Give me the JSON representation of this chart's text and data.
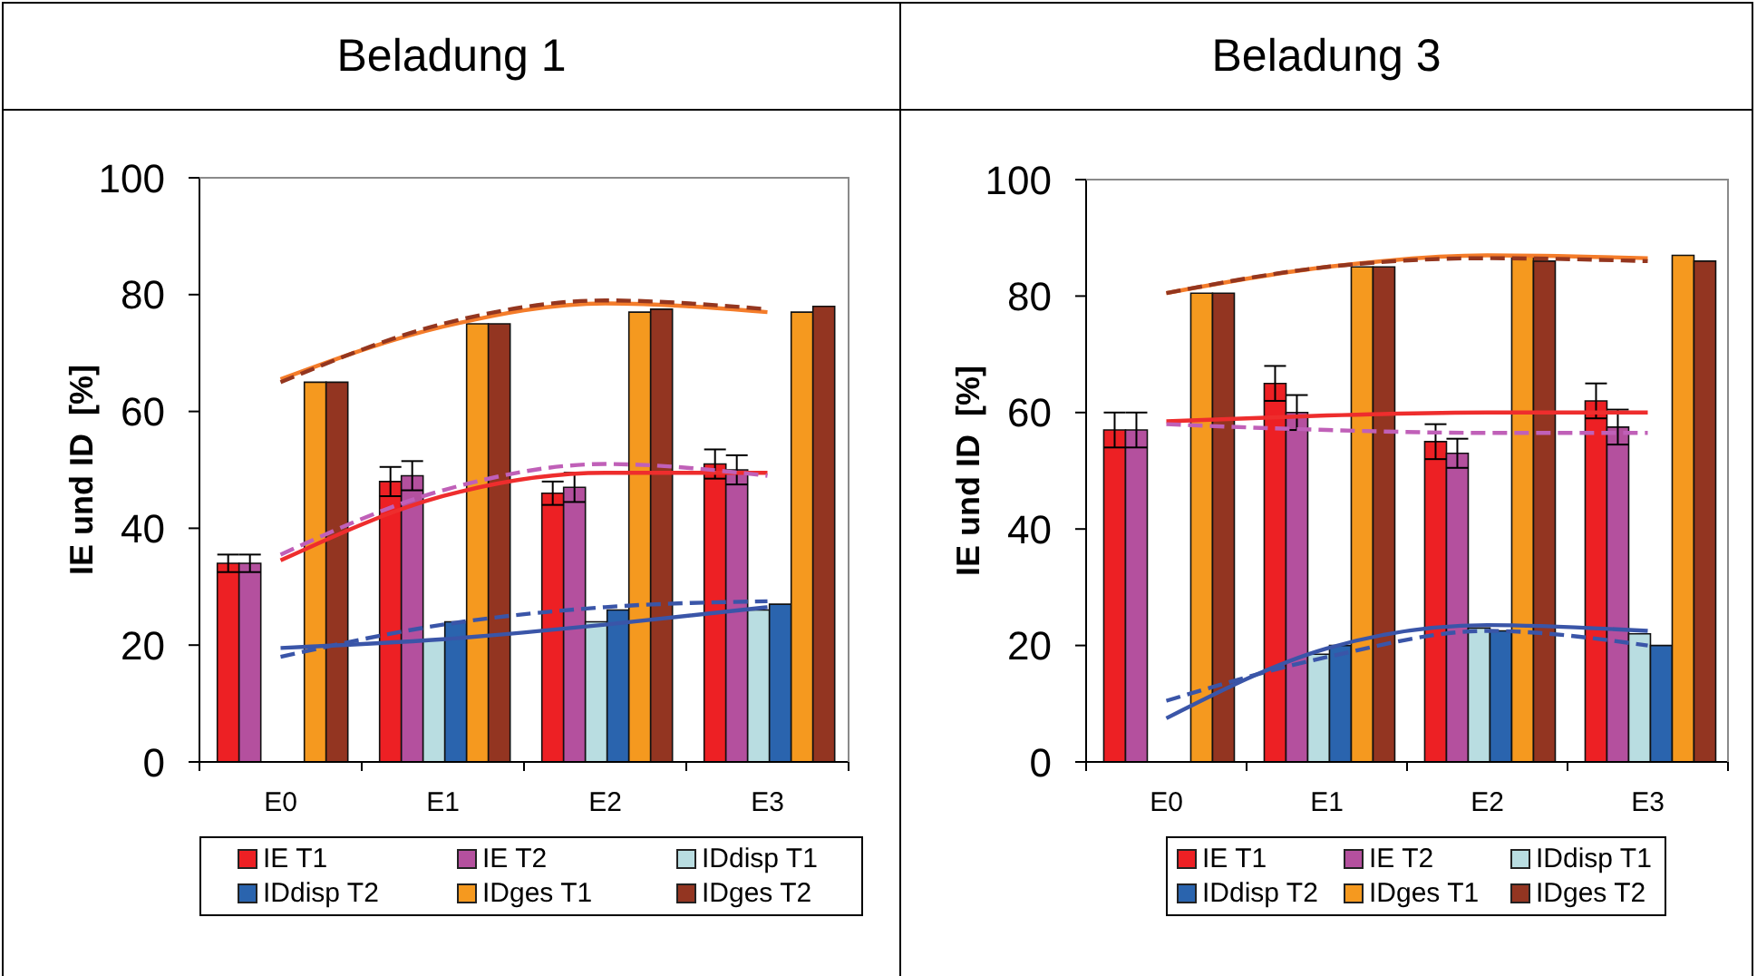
{
  "chart_data": [
    {
      "type": "bar",
      "title": "Beladung 1",
      "ylabel": "IE und ID  [%]",
      "categories": [
        "E0",
        "E1",
        "E2",
        "E3"
      ],
      "ylim": [
        0,
        100
      ],
      "yticks": [
        0,
        20,
        40,
        60,
        80,
        100
      ],
      "legend": "bottom",
      "series": [
        {
          "name": "IE T1",
          "color": "#ed2024",
          "values": [
            34,
            48,
            46,
            51
          ],
          "errors": [
            1.5,
            2.5,
            2,
            2.5
          ]
        },
        {
          "name": "IE T2",
          "color": "#b4509e",
          "values": [
            34,
            49,
            47,
            50
          ],
          "errors": [
            1.5,
            2.5,
            2.5,
            2.5
          ]
        },
        {
          "name": "IDdisp T1",
          "color": "#b9dde1",
          "values": [
            null,
            21,
            24,
            26
          ]
        },
        {
          "name": "IDdisp T2",
          "color": "#2a64ae",
          "values": [
            null,
            24,
            26,
            27
          ]
        },
        {
          "name": "IDges T1",
          "color": "#f5991f",
          "values": [
            65,
            75,
            77,
            77
          ]
        },
        {
          "name": "IDges T2",
          "color": "#933521",
          "values": [
            65,
            75,
            77.5,
            78
          ]
        },
        {
          "type": "line",
          "color": "#ee2d2d",
          "line_style": "solid",
          "x": [
            "E0",
            "E1",
            "E2",
            "E3"
          ],
          "values": [
            34.5,
            45.5,
            49.5,
            49.5
          ]
        },
        {
          "type": "line",
          "color": "#c060b8",
          "line_style": "dashed",
          "x": [
            "E0",
            "E1",
            "E2",
            "E3"
          ],
          "values": [
            35.5,
            46.5,
            51,
            49
          ]
        },
        {
          "type": "line",
          "color": "#3a55a8",
          "line_style": "solid",
          "x": [
            "E0",
            "E1",
            "E2",
            "E3"
          ],
          "values": [
            19.5,
            21,
            23.5,
            26.5
          ]
        },
        {
          "type": "line",
          "color": "#3a55a8",
          "line_style": "dashed",
          "x": [
            "E0",
            "E1",
            "E2",
            "E3"
          ],
          "values": [
            18,
            23.5,
            26.5,
            27.5
          ]
        },
        {
          "type": "line",
          "color": "#f47c2a",
          "line_style": "solid",
          "x": [
            "E0",
            "E1",
            "E2",
            "E3"
          ],
          "values": [
            65.5,
            74.5,
            78.5,
            77
          ]
        },
        {
          "type": "line",
          "color": "#94361f",
          "line_style": "dashed",
          "x": [
            "E0",
            "E1",
            "E2",
            "E3"
          ],
          "values": [
            65,
            75,
            79,
            77.5
          ]
        }
      ]
    },
    {
      "type": "bar",
      "title": "Beladung 3",
      "ylabel": "IE und ID  [%]",
      "categories": [
        "E0",
        "E1",
        "E2",
        "E3"
      ],
      "ylim": [
        0,
        100
      ],
      "yticks": [
        0,
        20,
        40,
        60,
        80,
        100
      ],
      "legend": "bottom",
      "series": [
        {
          "name": "IE T1",
          "color": "#ed2024",
          "values": [
            57,
            65,
            55,
            62
          ],
          "errors": [
            3,
            3,
            3,
            3
          ]
        },
        {
          "name": "IE T2",
          "color": "#b4509e",
          "values": [
            57,
            60,
            53,
            57.5
          ],
          "errors": [
            3,
            3,
            2.5,
            3
          ]
        },
        {
          "name": "IDdisp T1",
          "color": "#b9dde1",
          "values": [
            null,
            18.5,
            23,
            22
          ]
        },
        {
          "name": "IDdisp T2",
          "color": "#2a64ae",
          "values": [
            null,
            20,
            22.5,
            20
          ]
        },
        {
          "name": "IDges T1",
          "color": "#f5991f",
          "values": [
            80.5,
            85,
            87,
            87
          ]
        },
        {
          "name": "IDges T2",
          "color": "#933521",
          "values": [
            80.5,
            85,
            86,
            86
          ]
        },
        {
          "type": "line",
          "color": "#ee2d2d",
          "line_style": "solid",
          "x": [
            "E0",
            "E1",
            "E2",
            "E3"
          ],
          "values": [
            58.5,
            59.5,
            60,
            60
          ]
        },
        {
          "type": "line",
          "color": "#c060b8",
          "line_style": "dashed",
          "x": [
            "E0",
            "E1",
            "E2",
            "E3"
          ],
          "values": [
            58,
            57,
            56.5,
            56.5
          ]
        },
        {
          "type": "line",
          "color": "#3a55a8",
          "line_style": "solid",
          "x": [
            "E0",
            "E1",
            "E2",
            "E3"
          ],
          "values": [
            7.5,
            19.5,
            23.5,
            22.5
          ]
        },
        {
          "type": "line",
          "color": "#3a55a8",
          "line_style": "dashed",
          "x": [
            "E0",
            "E1",
            "E2",
            "E3"
          ],
          "values": [
            10.5,
            18,
            22.5,
            20
          ]
        },
        {
          "type": "line",
          "color": "#f47c2a",
          "line_style": "solid",
          "x": [
            "E0",
            "E1",
            "E2",
            "E3"
          ],
          "values": [
            80.5,
            85,
            87,
            86.5
          ]
        },
        {
          "type": "line",
          "color": "#94361f",
          "line_style": "dashed",
          "x": [
            "E0",
            "E1",
            "E2",
            "E3"
          ],
          "values": [
            80.5,
            85,
            86.5,
            86
          ]
        }
      ]
    }
  ]
}
